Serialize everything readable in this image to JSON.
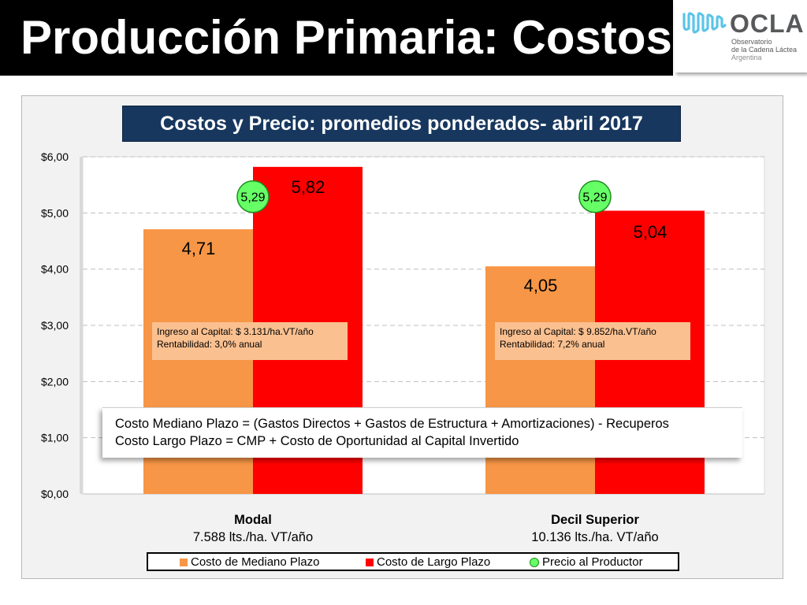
{
  "slide": {
    "title": "Producción Primaria: Costos"
  },
  "logo": {
    "name": "OCLA",
    "sub1": "Observatorio",
    "sub2": "de la Cadena Láctea",
    "sub3": "Argentina"
  },
  "chart_data": {
    "type": "bar",
    "title": "Costos  y Precio: promedios ponderados- abril 2017",
    "categories": [
      "Modal",
      "Decil Superior"
    ],
    "category_subtitles": [
      "7.588 lts./ha. VT/año",
      "10.136 lts./ha.  VT/año"
    ],
    "series": [
      {
        "name": "Costo de Mediano Plazo",
        "values": [
          4.71,
          4.05
        ],
        "labels": [
          "4,71",
          "4,05"
        ],
        "color": "#f79646"
      },
      {
        "name": "Costo de Largo Plazo",
        "values": [
          5.82,
          5.04
        ],
        "labels": [
          "5,82",
          "5,04"
        ],
        "color": "#ff0000"
      },
      {
        "name": "Precio al Productor",
        "values": [
          5.29,
          5.29
        ],
        "labels": [
          "5,29",
          "5,29"
        ],
        "color": "#66ff66"
      }
    ],
    "yticks": [
      "$0,00",
      "$1,00",
      "$2,00",
      "$3,00",
      "$4,00",
      "$5,00",
      "$6,00"
    ],
    "ylim": [
      0,
      6
    ],
    "grid": true,
    "legend_position": "bottom",
    "annotations": [
      {
        "line1": "Ingreso al Capital: $ 3.131/ha.VT/año",
        "line2": "Rentabilidad: 3,0% anual"
      },
      {
        "line1": "Ingreso al Capital: $ 9.852/ha.VT/año",
        "line2": "Rentabilidad: 7,2% anual"
      }
    ],
    "formula": {
      "line1": "Costo Mediano Plazo = (Gastos Directos + Gastos de Estructura + Amortizaciones) - Recuperos",
      "line2": "Costo Largo Plazo = CMP + Costo de Oportunidad al Capital Invertido"
    }
  }
}
